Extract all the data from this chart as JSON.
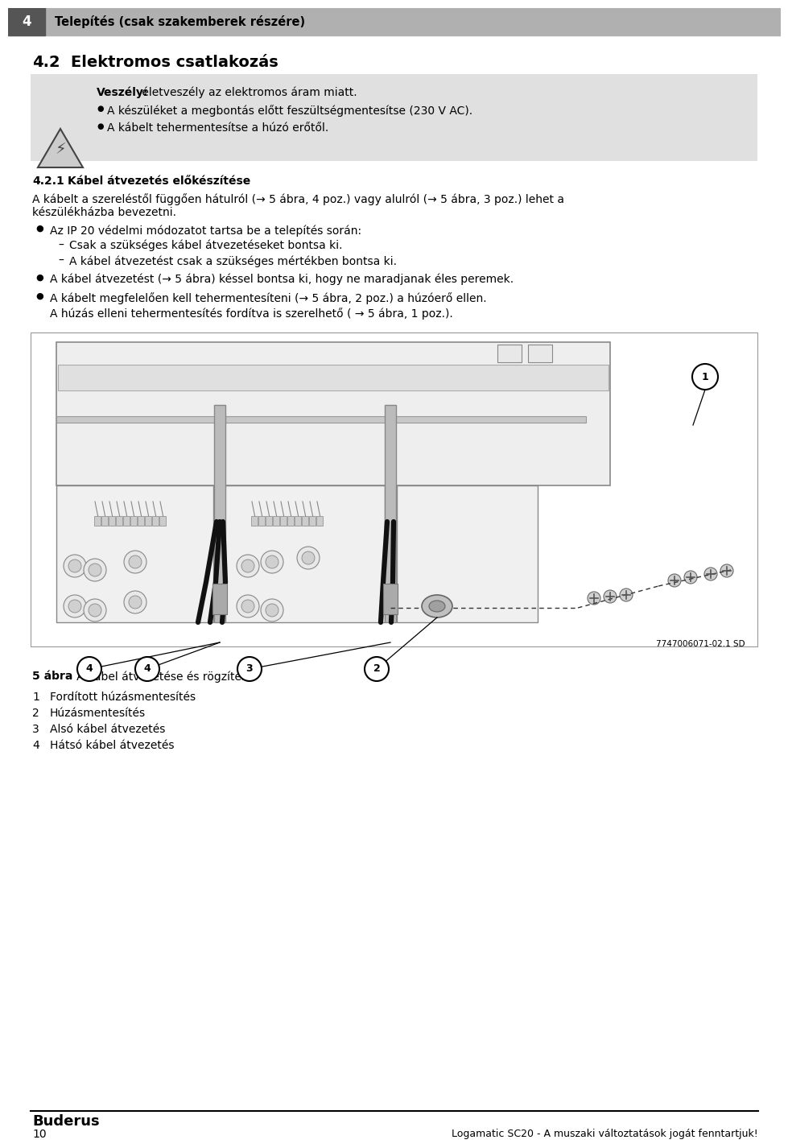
{
  "bg_color": "#ffffff",
  "header_bg": "#b0b0b0",
  "header_dark": "#555555",
  "warning_bg": "#e0e0e0",
  "header_number": "4",
  "header_text": "Telepítés (csak szakemberek részére)",
  "section_title": "4.2",
  "section_title2": "Elektromos csatlakozás",
  "warning_title_bold": "Veszély:",
  "warning_title_rest": " életveszély az elektromos áram miatt.",
  "warning_bullets": [
    "A készüléket a megbontás előtt feszültségmentesítse (230 V AC).",
    "A kábelt tehermentesítse a húzó erőtől."
  ],
  "subsection_title": "4.2.1",
  "subsection_title2": "Kábel átvezetés előkészítése",
  "body_text1_line1": "A kábelt a szereléstől függően hátulról (→ 5 ábra, 4 poz.) vagy alulról (→ 5 ábra, 3 poz.) lehet a",
  "body_text1_line2": "készülékházba bevezetni.",
  "bullet_items": [
    {
      "text": "Az IP 20 védelmi módozatot tartsa be a telepítés során:",
      "sub_items": [
        "Csak a szükséges kábel átvezetéseket bontsa ki.",
        "A kábel átvezetést csak a szükséges mértékben bontsa ki."
      ]
    },
    {
      "text": "A kábel átvezetést (→ 5 ábra) késsel bontsa ki, hogy ne maradjanak éles peremek.",
      "sub_items": []
    },
    {
      "text": "A kábelt megfelelően kell tehermentesíteni (→ 5 ábra, 2 poz.) a húzóerő ellen.",
      "text2": "A húzás elleni tehermentesítés fordítva is szerelhető ( → 5 ábra, 1 poz.).",
      "sub_items": []
    }
  ],
  "figure_caption_bold": "5 ábra",
  "figure_caption_rest": "   A kábel átvezetése és rögzítése",
  "legend_items": [
    [
      "1",
      "Fordított húzásmentesítés"
    ],
    [
      "2",
      "Húzásmentesítés"
    ],
    [
      "3",
      "Alsó kábel átvezetés"
    ],
    [
      "4",
      "Hátsó kábel átvezetés"
    ]
  ],
  "footer_brand": "Buderus",
  "footer_page": "10",
  "footer_right": "Logamatic SC20 - A muszaki változtatások jogát fenntartjuk!",
  "figure_ref": "7747006071-02.1 SD",
  "line_color": "#333333",
  "fig_border_color": "#999999"
}
